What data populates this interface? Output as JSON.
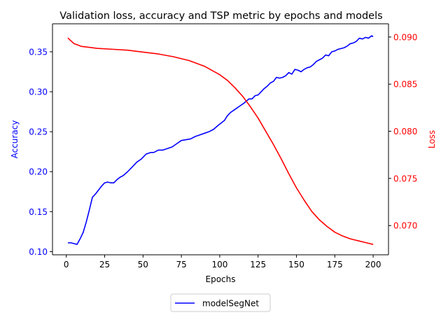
{
  "chart_data": {
    "type": "line",
    "title": "Validation loss, accuracy and TSP metric by epochs and models",
    "xlabel": "Epochs",
    "ylabel_left": "Accuracy",
    "ylabel_right": "Loss",
    "xlim": [
      -9,
      210
    ],
    "ylim_left": [
      0.096,
      0.385
    ],
    "ylim_right": [
      0.0669,
      0.0914
    ],
    "x_ticks": [
      0,
      25,
      50,
      75,
      100,
      125,
      150,
      175,
      200
    ],
    "y_ticks_left": [
      0.1,
      0.15,
      0.2,
      0.25,
      0.3,
      0.35
    ],
    "y_ticks_right": [
      0.07,
      0.075,
      0.08,
      0.085,
      0.09
    ],
    "grid": false,
    "legend": {
      "placement": "bottom-center",
      "entries": [
        "modelSegNet"
      ]
    },
    "colors": {
      "accuracy": "#0000ff",
      "loss": "#ff0000",
      "axis": "#000000"
    },
    "series": [
      {
        "name": "modelSegNet",
        "axis": "left",
        "color": "#0000ff",
        "x": [
          1,
          3,
          5,
          7,
          9,
          11,
          13,
          15,
          17,
          19,
          21,
          23,
          25,
          27,
          29,
          31,
          33,
          35,
          37,
          40,
          43,
          46,
          49,
          52,
          55,
          57,
          60,
          63,
          66,
          69,
          72,
          75,
          78,
          81,
          84,
          87,
          90,
          93,
          96,
          99,
          101,
          103,
          105,
          107,
          110,
          113,
          116,
          119,
          121,
          123,
          125,
          127,
          129,
          131,
          133,
          135,
          137,
          139,
          141,
          143,
          145,
          147,
          149,
          151,
          153,
          155,
          157,
          159,
          161,
          163,
          165,
          167,
          169,
          171,
          173,
          175,
          177,
          179,
          181,
          183,
          185,
          187,
          189,
          191,
          193,
          195,
          197,
          199,
          200
        ],
        "y": [
          0.111,
          0.111,
          0.11,
          0.109,
          0.116,
          0.124,
          0.137,
          0.152,
          0.168,
          0.172,
          0.177,
          0.182,
          0.186,
          0.187,
          0.186,
          0.186,
          0.19,
          0.193,
          0.195,
          0.2,
          0.206,
          0.212,
          0.216,
          0.222,
          0.224,
          0.224,
          0.227,
          0.227,
          0.229,
          0.231,
          0.235,
          0.239,
          0.24,
          0.241,
          0.244,
          0.246,
          0.248,
          0.25,
          0.253,
          0.258,
          0.261,
          0.264,
          0.27,
          0.274,
          0.278,
          0.282,
          0.286,
          0.291,
          0.291,
          0.295,
          0.296,
          0.3,
          0.304,
          0.307,
          0.311,
          0.313,
          0.318,
          0.317,
          0.318,
          0.32,
          0.324,
          0.322,
          0.328,
          0.327,
          0.325,
          0.328,
          0.33,
          0.331,
          0.334,
          0.338,
          0.34,
          0.342,
          0.346,
          0.345,
          0.35,
          0.351,
          0.353,
          0.354,
          0.355,
          0.357,
          0.36,
          0.361,
          0.363,
          0.367,
          0.366,
          0.368,
          0.367,
          0.37,
          0.369
        ]
      },
      {
        "name": "",
        "axis": "right",
        "color": "#ff0000",
        "x": [
          1,
          5,
          10,
          20,
          30,
          40,
          50,
          60,
          70,
          80,
          90,
          100,
          105,
          110,
          115,
          120,
          125,
          130,
          135,
          140,
          145,
          150,
          155,
          160,
          165,
          170,
          175,
          180,
          185,
          190,
          195,
          200
        ],
        "y": [
          0.0899,
          0.0893,
          0.089,
          0.0888,
          0.0887,
          0.0886,
          0.0884,
          0.0882,
          0.0879,
          0.0875,
          0.0869,
          0.086,
          0.0854,
          0.0846,
          0.0837,
          0.0826,
          0.0814,
          0.08,
          0.0786,
          0.0771,
          0.0755,
          0.074,
          0.0727,
          0.0715,
          0.0706,
          0.0699,
          0.0693,
          0.0689,
          0.0686,
          0.0684,
          0.0682,
          0.068
        ]
      }
    ]
  }
}
